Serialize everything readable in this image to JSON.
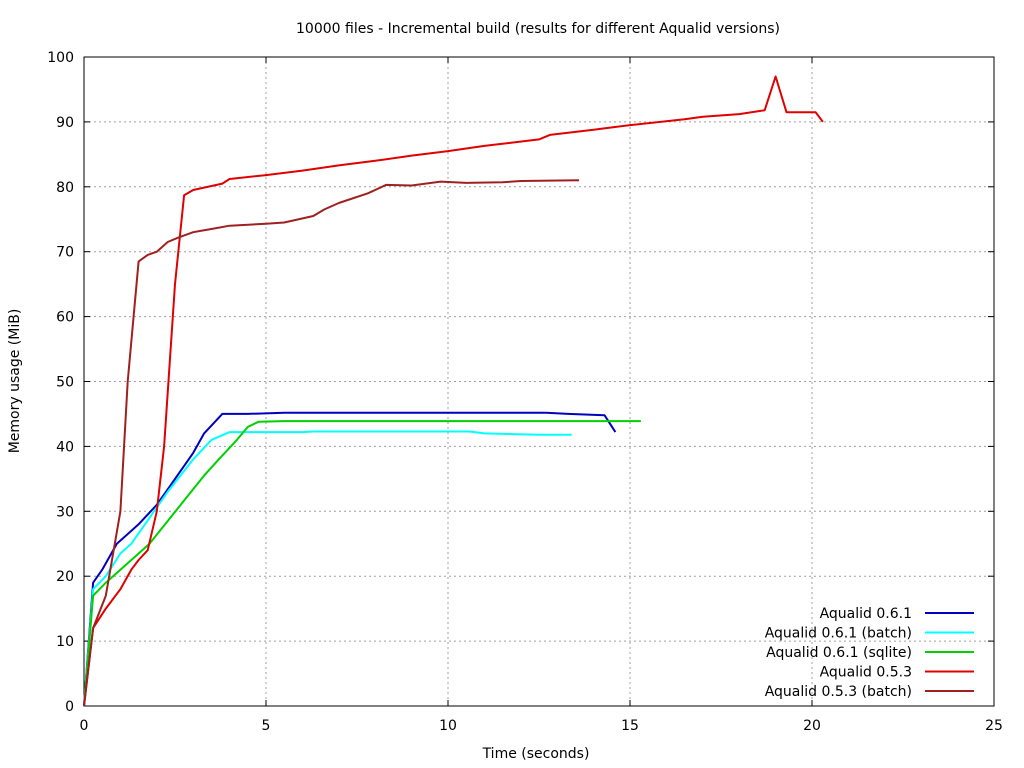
{
  "chart_data": {
    "type": "line",
    "title": "10000 files - Incremental build (results for different Aqualid versions)",
    "xlabel": "Time (seconds)",
    "ylabel": "Memory usage (MiB)",
    "xlim": [
      0,
      25
    ],
    "ylim": [
      0,
      100
    ],
    "xticks": [
      0,
      5,
      10,
      15,
      20,
      25
    ],
    "yticks": [
      0,
      10,
      20,
      30,
      40,
      50,
      60,
      70,
      80,
      90,
      100
    ],
    "grid": true,
    "legend_position": "bottom-right",
    "series": [
      {
        "name": "Aqualid 0.6.1",
        "color": "#0000c0",
        "x": [
          0,
          0.25,
          0.5,
          0.9,
          1.5,
          2.0,
          2.5,
          3.0,
          3.3,
          3.8,
          4.5,
          5.5,
          8,
          10,
          12.7,
          13.3,
          14.3,
          14.6
        ],
        "y": [
          0,
          19,
          21,
          25,
          28,
          31,
          35,
          39,
          42,
          45,
          45,
          45.2,
          45.2,
          45.2,
          45.2,
          45,
          44.8,
          42.2
        ]
      },
      {
        "name": "Aqualid 0.6.1 (batch)",
        "color": "#00ffff",
        "x": [
          0,
          0.25,
          0.6,
          1.0,
          1.3,
          1.8,
          2.3,
          3.0,
          3.5,
          4.0,
          5.0,
          6.0,
          6.3,
          8,
          10.6,
          11,
          12.5,
          13.4
        ],
        "y": [
          0,
          18,
          20,
          23.5,
          25,
          29,
          33,
          38,
          41,
          42.2,
          42.2,
          42.2,
          42.3,
          42.3,
          42.3,
          42,
          41.8,
          41.8
        ]
      },
      {
        "name": "Aqualid 0.6.1 (sqlite)",
        "color": "#00d000",
        "x": [
          0,
          0.25,
          0.6,
          1.0,
          1.4,
          1.8,
          2.3,
          2.8,
          3.3,
          3.7,
          4.2,
          4.5,
          4.8,
          5.5,
          8,
          10,
          13,
          15.3
        ],
        "y": [
          0,
          17,
          19,
          21,
          23,
          25,
          28.5,
          32,
          35.5,
          38,
          41,
          43,
          43.8,
          43.9,
          43.9,
          43.9,
          43.9,
          43.9
        ]
      },
      {
        "name": "Aqualid 0.5.3",
        "color": "#e00000",
        "x": [
          0,
          0.25,
          0.6,
          1.0,
          1.3,
          1.5,
          1.75,
          2.0,
          2.2,
          2.5,
          2.75,
          3.0,
          3.8,
          4.0,
          5.0,
          6.0,
          7.0,
          8.0,
          9.0,
          10.0,
          11.0,
          12.5,
          12.8,
          14.0,
          15.0,
          16.5,
          17.0,
          18.0,
          18.7,
          19.0,
          19.3,
          20.1,
          20.3
        ],
        "y": [
          0,
          12,
          15,
          18,
          21,
          22.5,
          24,
          30,
          40,
          65,
          78.7,
          79.5,
          80.5,
          81.2,
          81.8,
          82.5,
          83.3,
          84,
          84.8,
          85.5,
          86.3,
          87.3,
          88,
          88.8,
          89.5,
          90.4,
          90.8,
          91.2,
          91.8,
          97,
          91.5,
          91.5,
          90
        ]
      },
      {
        "name": "Aqualid 0.5.3 (batch)",
        "color": "#a02020",
        "x": [
          0,
          0.25,
          0.6,
          1.0,
          1.2,
          1.5,
          1.75,
          2.0,
          2.3,
          2.6,
          3.0,
          3.2,
          3.5,
          4.0,
          5.0,
          5.5,
          6.3,
          6.6,
          7.0,
          7.8,
          8.3,
          9.0,
          9.8,
          10.5,
          11.5,
          12.0,
          13.6
        ],
        "y": [
          0,
          12,
          17,
          30,
          50,
          68.5,
          69.5,
          70,
          71.5,
          72.2,
          73,
          73.2,
          73.5,
          74,
          74.3,
          74.5,
          75.5,
          76.5,
          77.5,
          79,
          80.3,
          80.2,
          80.8,
          80.6,
          80.7,
          80.9,
          81
        ]
      }
    ]
  }
}
